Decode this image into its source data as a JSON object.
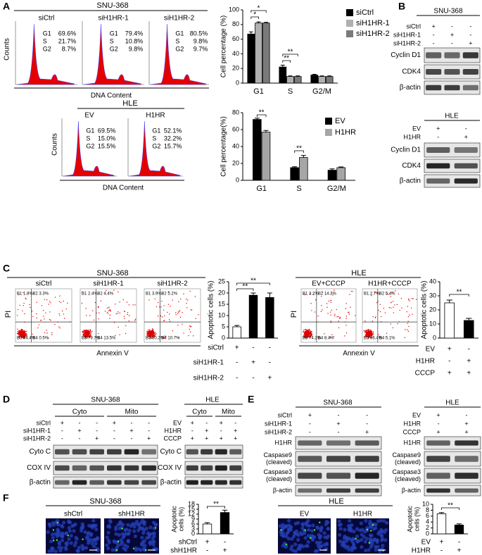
{
  "panels": {
    "A": {
      "letter": "A",
      "top": {
        "group": "SNU-368",
        "y_label": "Counts",
        "x_label": "DNA Content",
        "samples": [
          {
            "name": "siCtrl",
            "gates": [
              [
                "G1",
                "69.6%"
              ],
              [
                "S",
                "21.7%"
              ],
              [
                "G2",
                "8.7%"
              ]
            ]
          },
          {
            "name": "siH1HR-1",
            "gates": [
              [
                "G1",
                "79.4%"
              ],
              [
                "S",
                "10.8%"
              ],
              [
                "G2",
                "9.8%"
              ]
            ]
          },
          {
            "name": "siH1HR-2",
            "gates": [
              [
                "G1",
                "80.5%"
              ],
              [
                "S",
                "9.8%"
              ],
              [
                "G2",
                "9.7%"
              ]
            ]
          }
        ]
      },
      "bottom": {
        "group": "HLE",
        "y_label": "Counts",
        "x_label": "DNA Content",
        "samples": [
          {
            "name": "EV",
            "gates": [
              [
                "G1",
                "69.5%"
              ],
              [
                "S",
                "15.0%"
              ],
              [
                "G2",
                "15.5%"
              ]
            ]
          },
          {
            "name": "H1HR",
            "gates": [
              [
                "G1",
                "52.1%"
              ],
              [
                "S",
                "32.2%"
              ],
              [
                "G2",
                "15.7%"
              ]
            ]
          }
        ]
      }
    },
    "B": {
      "letter": "B",
      "top": {
        "group": "SNU-368",
        "conditions": [
          {
            "label": "siCtrl",
            "signs": [
              "+",
              "-",
              "-"
            ]
          },
          {
            "label": "siH1HR-1",
            "signs": [
              "-",
              "+",
              "-"
            ]
          },
          {
            "label": "siH1HR-2",
            "signs": [
              "-",
              "-",
              "+"
            ]
          }
        ],
        "blots": [
          "Cyclin D1",
          "CDK4",
          "β-actin"
        ]
      },
      "bottom": {
        "group": "HLE",
        "conditions": [
          {
            "label": "EV",
            "signs": [
              "+",
              "-"
            ]
          },
          {
            "label": "H1HR",
            "signs": [
              "-",
              "+"
            ]
          }
        ],
        "blots": [
          "Cyclin D1",
          "CDK4",
          "β-actin"
        ]
      }
    },
    "C": {
      "letter": "C",
      "left": {
        "group": "SNU-368",
        "y_label": "PI",
        "x_label": "Annexin V",
        "samples": [
          {
            "name": "siCtrl",
            "quadrants": [
              "B1 1.8%",
              "B2 3.3%",
              "B3 94.4%",
              "B4 0.5%"
            ]
          },
          {
            "name": "siH1HR-1",
            "quadrants": [
              "B1 2.4%",
              "B2 4.4%",
              "B3 79.7%",
              "B4 13.5%"
            ]
          },
          {
            "name": "siH1HR-2",
            "quadrants": [
              "B1 3.9%",
              "B2 5.2%",
              "B3 80.2%",
              "B4 10.7%"
            ]
          }
        ]
      },
      "right": {
        "group": "HLE",
        "y_label": "PI",
        "x_label": "Annexin V",
        "samples": [
          {
            "name": "EV+CCCP",
            "quadrants": [
              "B1 3.2%",
              "B2 14.3%",
              "B3 74.2%",
              "B4 8.4%"
            ]
          },
          {
            "name": "H1HR+CCCP",
            "quadrants": [
              "B1 2.7%",
              "B2 5.4%",
              "B3 86.4%",
              "B4 5.1%"
            ]
          }
        ]
      }
    },
    "D": {
      "letter": "D",
      "left": {
        "group": "SNU-368",
        "fractions": [
          "Cyto",
          "Mito"
        ],
        "conditions": [
          {
            "label": "siCtrl",
            "signs": [
              "+",
              "-",
              "-",
              "+",
              "-",
              "-"
            ]
          },
          {
            "label": "siH1HR-1",
            "signs": [
              "-",
              "+",
              "-",
              "-",
              "+",
              "-"
            ]
          },
          {
            "label": "siH1HR-2",
            "signs": [
              "-",
              "-",
              "+",
              "-",
              "-",
              "+"
            ]
          }
        ],
        "blots": [
          "Cyto C",
          "COX IV",
          "β-actin"
        ]
      },
      "right": {
        "group": "HLE",
        "fractions": [
          "Cyto",
          "Mito"
        ],
        "conditions": [
          {
            "label": "EV",
            "signs": [
              "+",
              "-",
              "+",
              "-"
            ]
          },
          {
            "label": "H1HR",
            "signs": [
              "-",
              "+",
              "-",
              "+"
            ]
          },
          {
            "label": "CCCP",
            "signs": [
              "+",
              "+",
              "+",
              "+"
            ]
          }
        ],
        "blots": [
          "Cyto C",
          "COX IV",
          "β-actin"
        ]
      }
    },
    "E": {
      "letter": "E",
      "left": {
        "group": "SNU-368",
        "conditions": [
          {
            "label": "siCtrl",
            "signs": [
              "+",
              "-",
              "-"
            ]
          },
          {
            "label": "siH1HR-1",
            "signs": [
              "-",
              "+",
              "-"
            ]
          },
          {
            "label": "siH1HR-2",
            "signs": [
              "-",
              "-",
              "+"
            ]
          }
        ],
        "blots": [
          [
            "H1HR"
          ],
          [
            "Caspase9",
            "(cleaved)"
          ],
          [
            "Caspase3",
            "(cleaved)"
          ],
          [
            "β-actin"
          ]
        ]
      },
      "right": {
        "group": "HLE",
        "conditions": [
          {
            "label": "EV",
            "signs": [
              "+",
              "-"
            ]
          },
          {
            "label": "H1HR",
            "signs": [
              "-",
              "+"
            ]
          },
          {
            "label": "CCCP",
            "signs": [
              "+",
              "+"
            ]
          }
        ],
        "blots": [
          [
            "H1HR"
          ],
          [
            "Caspase9",
            "(cleaved)"
          ],
          [
            "Caspase3",
            "(cleaved)"
          ],
          [
            "β-actin"
          ]
        ]
      }
    },
    "F": {
      "letter": "F",
      "left": {
        "group": "SNU-368",
        "images": [
          "shCtrl",
          "shH1HR"
        ]
      },
      "right": {
        "group": "HLE",
        "images": [
          "EV",
          "H1HR"
        ]
      }
    }
  },
  "chart_data": [
    {
      "type": "bar",
      "y_label": "Cell percentage (%)",
      "categories": [
        "G1",
        "S",
        "G2/M"
      ],
      "series": [
        {
          "name": "siCtrl",
          "color": "#000000",
          "values": [
            67,
            22,
            11
          ],
          "errors": [
            3,
            2.5,
            1
          ]
        },
        {
          "name": "siH1HR-1",
          "color": "#b0b0b0",
          "values": [
            82,
            9,
            9
          ],
          "errors": [
            1.5,
            0.8,
            0.8
          ]
        },
        {
          "name": "siH1HR-2",
          "color": "#7a7a7a",
          "values": [
            82,
            9,
            9
          ],
          "errors": [
            1,
            0.8,
            0.8
          ]
        }
      ],
      "ylim": [
        0,
        100
      ],
      "yticks": [
        0,
        20,
        40,
        60,
        80,
        100
      ],
      "annotations": [
        "*",
        "*",
        "**",
        "**"
      ]
    },
    {
      "type": "bar",
      "y_label": "Cell percentage(%)",
      "categories": [
        "G1",
        "S",
        "G2/M"
      ],
      "series": [
        {
          "name": "EV",
          "color": "#000000",
          "values": [
            72,
            15,
            12
          ],
          "errors": [
            1.5,
            1,
            1.5
          ]
        },
        {
          "name": "H1HR",
          "color": "#a6a6a6",
          "values": [
            57,
            27,
            15
          ],
          "errors": [
            2,
            2.5,
            0.8
          ]
        }
      ],
      "ylim": [
        0,
        80
      ],
      "yticks": [
        0,
        20,
        40,
        60,
        80
      ],
      "annotations": [
        "**",
        "**"
      ]
    },
    {
      "type": "bar",
      "y_label": "Apoptotic cells (%)",
      "values": [
        5,
        19,
        18
      ],
      "errors": [
        0.6,
        1,
        2
      ],
      "colors": [
        "#ffffff",
        "#000000",
        "#000000"
      ],
      "ylim": [
        0,
        25
      ],
      "yticks": [
        0,
        5,
        10,
        15,
        20,
        25
      ],
      "annotations": [
        "**",
        "**"
      ],
      "conditions": [
        {
          "label": "siCtrl",
          "signs": [
            "+",
            "-",
            "-"
          ]
        },
        {
          "label": "siH1HR-1",
          "signs": [
            "-",
            "+",
            "-"
          ]
        },
        {
          "label": "siH1HR-2",
          "signs": [
            "-",
            "-",
            "+"
          ]
        }
      ]
    },
    {
      "type": "bar",
      "y_label": "Apoptotic cells (%)",
      "values": [
        25,
        12.5
      ],
      "errors": [
        2,
        1.5
      ],
      "colors": [
        "#ffffff",
        "#000000"
      ],
      "ylim": [
        0,
        40
      ],
      "yticks": [
        0,
        10,
        20,
        30,
        40
      ],
      "annotations": [
        "**"
      ],
      "conditions": [
        {
          "label": "EV",
          "signs": [
            "+",
            "-"
          ]
        },
        {
          "label": "H1HR",
          "signs": [
            "-",
            "+"
          ]
        },
        {
          "label": "CCCP",
          "signs": [
            "+",
            "+"
          ]
        }
      ]
    },
    {
      "type": "bar",
      "y_label": [
        "Apoptotic",
        "cells (%)"
      ],
      "values": [
        6,
        13
      ],
      "errors": [
        0.8,
        1.4
      ],
      "colors": [
        "#ffffff",
        "#000000"
      ],
      "ylim": [
        0,
        18
      ],
      "yticks": [
        0,
        3,
        6,
        9,
        12,
        15,
        18
      ],
      "annotations": [
        "**"
      ],
      "conditions": [
        {
          "label": "shCtrl",
          "signs": [
            "+",
            "-"
          ]
        },
        {
          "label": "shH1HR",
          "signs": [
            "-",
            "+"
          ]
        }
      ]
    },
    {
      "type": "bar",
      "y_label": [
        "Apoptotic",
        "cells (%)"
      ],
      "values": [
        6.8,
        3
      ],
      "errors": [
        0.4,
        0.4
      ],
      "colors": [
        "#ffffff",
        "#000000"
      ],
      "ylim": [
        0,
        10
      ],
      "yticks": [
        0,
        2,
        4,
        6,
        8,
        10
      ],
      "annotations": [
        "**"
      ],
      "conditions": [
        {
          "label": "EV",
          "signs": [
            "+",
            "-"
          ]
        },
        {
          "label": "H1HR",
          "signs": [
            "-",
            "+"
          ]
        }
      ]
    }
  ]
}
